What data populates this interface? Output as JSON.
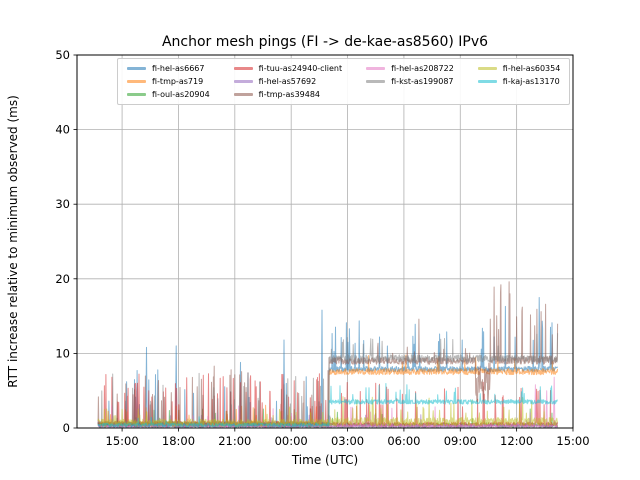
{
  "chart_data": {
    "type": "line",
    "title": "Anchor mesh pings (FI -> de-kae-as8560) IPv6",
    "xlabel": "Time (UTC)",
    "ylabel": "RTT increase relative to minimum observed (ms)",
    "x_tick_hours": [
      15,
      18,
      21,
      24,
      27,
      30,
      33,
      36,
      39
    ],
    "x_tick_labels": [
      "15:00",
      "18:00",
      "21:00",
      "00:00",
      "03:00",
      "06:00",
      "09:00",
      "12:00",
      "15:00"
    ],
    "y_ticks": [
      0,
      10,
      20,
      30,
      40,
      50
    ],
    "y_tick_labels": [
      "0",
      "10",
      "20",
      "30",
      "40",
      "50"
    ],
    "xlim_hours": [
      12.6,
      39.0
    ],
    "ylim": [
      0,
      50
    ],
    "grid": true,
    "grid_color": "#b0b0b0",
    "spine_color": "#000000",
    "line_alpha": 0.55,
    "sample_step_hours": 0.02,
    "legend_ncol": 4,
    "legend_loc": "upper center",
    "series": [
      {
        "name": "fi-hel-as6667",
        "color": "#1f77b4",
        "segments": [
          {
            "t0": 13.72,
            "t1": 26.0,
            "base": 0.45,
            "noise": 0.3,
            "p": 0.035,
            "lo": 2.5,
            "hi": 8.5
          },
          {
            "t0": 26.0,
            "t1": 38.2,
            "base": 7.9,
            "noise": 0.35,
            "p": 0.05,
            "lo": 9.5,
            "hi": 14.5
          }
        ],
        "events": [
          [
            16.3,
            10.8
          ],
          [
            17.87,
            11.0
          ],
          [
            21.3,
            8.8
          ],
          [
            23.63,
            11.8
          ],
          [
            25.64,
            15.8
          ],
          [
            27.1,
            13.3
          ],
          [
            28.7,
            12.2
          ],
          [
            30.6,
            13.9
          ],
          [
            31.9,
            12.6
          ],
          [
            33.1,
            11.8
          ],
          [
            35.4,
            16.3
          ],
          [
            37.2,
            17.5
          ],
          [
            37.8,
            13.5
          ]
        ]
      },
      {
        "name": "fi-tmp-as719",
        "color": "#ff7f0e",
        "segments": [
          {
            "t0": 13.72,
            "t1": 26.0,
            "base": 0.55,
            "noise": 0.35,
            "p": 0.02,
            "lo": 1.5,
            "hi": 3.2
          },
          {
            "t0": 26.0,
            "t1": 38.2,
            "base": 7.55,
            "noise": 0.4,
            "p": 0.015,
            "lo": 8.8,
            "hi": 10.0
          }
        ],
        "events": []
      },
      {
        "name": "fi-oul-as20904",
        "color": "#2ca02c",
        "segments": [
          {
            "t0": 13.72,
            "t1": 38.2,
            "base": 0.4,
            "noise": 0.3,
            "p": 0.02,
            "lo": 1.2,
            "hi": 2.6
          }
        ],
        "events": []
      },
      {
        "name": "fi-tuu-as24940-client",
        "color": "#d62728",
        "segments": [
          {
            "t0": 13.72,
            "t1": 26.0,
            "base": 0.55,
            "noise": 0.35,
            "p": 0.09,
            "lo": 2.8,
            "hi": 7.5
          },
          {
            "t0": 26.0,
            "t1": 38.2,
            "base": 0.5,
            "noise": 0.3,
            "p": 0.07,
            "lo": 2.5,
            "hi": 6.2
          }
        ],
        "events": []
      },
      {
        "name": "fi-hel-as57692",
        "color": "#9467bd",
        "segments": [
          {
            "t0": 13.72,
            "t1": 38.2,
            "base": 0.25,
            "noise": 0.18,
            "p": 0.012,
            "lo": 0.8,
            "hi": 1.8
          }
        ],
        "events": []
      },
      {
        "name": "fi-tmp-as39484",
        "color": "#8c564b",
        "segments": [
          {
            "t0": 13.72,
            "t1": 26.0,
            "base": 0.5,
            "noise": 0.35,
            "p": 0.04,
            "lo": 3.0,
            "hi": 8.0
          },
          {
            "t0": 26.0,
            "t1": 33.8,
            "base": 9.0,
            "noise": 0.45,
            "p": 0.02,
            "lo": 10.0,
            "hi": 12.0
          },
          {
            "t0": 33.8,
            "t1": 34.6,
            "base": 5.5,
            "noise": 2.8,
            "p": 0.25,
            "lo": 3.0,
            "hi": 9.0
          },
          {
            "t0": 34.6,
            "t1": 38.2,
            "base": 9.1,
            "noise": 0.55,
            "p": 0.09,
            "lo": 11.0,
            "hi": 19.5
          }
        ],
        "events": [
          [
            19.9,
            8.3
          ],
          [
            30.8,
            14.6
          ],
          [
            34.8,
            18.9
          ],
          [
            35.15,
            19.2
          ],
          [
            35.6,
            19.6
          ],
          [
            36.0,
            14.9
          ],
          [
            36.3,
            16.2
          ],
          [
            37.3,
            15.6
          ],
          [
            37.9,
            12.5
          ]
        ]
      },
      {
        "name": "fi-hel-as208722",
        "color": "#e377c2",
        "segments": [
          {
            "t0": 13.72,
            "t1": 38.2,
            "base": 0.3,
            "noise": 0.2,
            "p": 0.015,
            "lo": 1.0,
            "hi": 3.0
          }
        ],
        "events": [
          [
            37.0,
            5.8
          ],
          [
            37.6,
            5.0
          ],
          [
            38.0,
            6.8
          ]
        ]
      },
      {
        "name": "fi-kst-as199087",
        "color": "#7f7f7f",
        "segments": [
          {
            "t0": 13.72,
            "t1": 26.0,
            "base": 0.55,
            "noise": 0.35,
            "p": 0.04,
            "lo": 3.0,
            "hi": 8.0
          },
          {
            "t0": 26.0,
            "t1": 38.2,
            "base": 9.3,
            "noise": 0.5,
            "p": 0.035,
            "lo": 10.5,
            "hi": 12.8
          }
        ],
        "events": []
      },
      {
        "name": "fi-hel-as60354",
        "color": "#bcbd22",
        "segments": [
          {
            "t0": 13.72,
            "t1": 26.0,
            "base": 0.7,
            "noise": 0.5,
            "p": 0.03,
            "lo": 1.6,
            "hi": 3.0
          },
          {
            "t0": 26.0,
            "t1": 38.2,
            "base": 0.85,
            "noise": 0.55,
            "p": 0.06,
            "lo": 2.0,
            "hi": 4.2
          }
        ],
        "events": []
      },
      {
        "name": "fi-kaj-as13170",
        "color": "#17becf",
        "segments": [
          {
            "t0": 13.72,
            "t1": 26.0,
            "base": 0.4,
            "noise": 0.25,
            "p": 0.01,
            "lo": 1.0,
            "hi": 2.0
          },
          {
            "t0": 26.0,
            "t1": 38.2,
            "base": 3.5,
            "noise": 0.3,
            "p": 0.03,
            "lo": 4.3,
            "hi": 6.0
          }
        ],
        "events": []
      }
    ]
  }
}
